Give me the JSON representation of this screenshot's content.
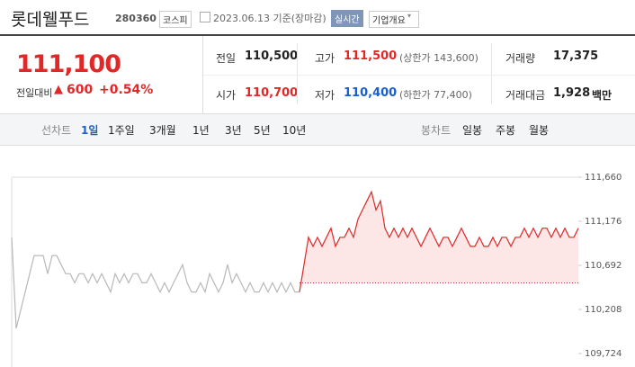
{
  "header": {
    "name": "롯데웰푸드",
    "code": "280360",
    "market": "코스피",
    "date": "2023.06.13 기준(장마감)",
    "realtime": "실시간",
    "company_info": "기업개요"
  },
  "quote": {
    "price": "111,100",
    "change_label": "전일대비",
    "change": "600",
    "change_rate": "+0.54%",
    "rows": [
      [
        {
          "label": "전일",
          "value": "110,500"
        },
        {
          "label": "고가",
          "value": "111,500",
          "note": "(상한가 143,600)"
        },
        {
          "label": "거래량",
          "value": "17,375"
        }
      ],
      [
        {
          "label": "시가",
          "value": "110,700"
        },
        {
          "label": "저가",
          "value": "110,400",
          "note": "(하한가 77,400)"
        },
        {
          "label": "거래대금",
          "value": "1,928",
          "unit": "백만"
        }
      ]
    ]
  },
  "tabs": {
    "line_label": "선차트",
    "line_periods": [
      "1일",
      "1주일",
      "3개월",
      "1년",
      "3년",
      "5년",
      "10년"
    ],
    "candle_label": "봉차트",
    "candle_periods": [
      "일봉",
      "주봉",
      "월봉"
    ]
  },
  "chart_data": {
    "type": "line",
    "ylim": [
      109724,
      111660
    ],
    "yticks": [
      {
        "value": 111660,
        "label": "111,660"
      },
      {
        "value": 111176,
        "label": "111,176"
      },
      {
        "value": 110692,
        "label": "110,692"
      },
      {
        "value": 110208,
        "label": "110,208"
      },
      {
        "value": 109724,
        "label": "109,724"
      }
    ],
    "baseline": 110500,
    "fill_color": "#fde6e6",
    "series": [
      {
        "color": "#b8b8b8",
        "values": [
          111000,
          110000,
          110200,
          110400,
          110600,
          110800,
          110800,
          110800,
          110600,
          110800,
          110800,
          110700,
          110600,
          110600,
          110500,
          110600,
          110600,
          110500,
          110600,
          110500,
          110600,
          110500,
          110400,
          110600,
          110500,
          110600,
          110500,
          110600,
          110600,
          110500,
          110500,
          110600,
          110500,
          110400,
          110500,
          110400,
          110500,
          110600,
          110700,
          110500,
          110400,
          110400,
          110500,
          110400,
          110600,
          110500,
          110400,
          110500,
          110700,
          110500,
          110600,
          110500,
          110400,
          110500,
          110400,
          110400,
          110500,
          110400,
          110500,
          110400,
          110500,
          110400,
          110500,
          110400,
          110400,
          null,
          null,
          null,
          null,
          null,
          null,
          null,
          null,
          null,
          null,
          null,
          null,
          null,
          null,
          null,
          null,
          null,
          null,
          null,
          null,
          null,
          null,
          null,
          null,
          null,
          null,
          null,
          null,
          null,
          null,
          null,
          null,
          null,
          null,
          null,
          null,
          null,
          null,
          null,
          null,
          null,
          null,
          null,
          null,
          null,
          null,
          null,
          null,
          null,
          null,
          null,
          null,
          null,
          null,
          null,
          null,
          null,
          null,
          null,
          null,
          null,
          null
        ]
      },
      {
        "color": "#e02828",
        "values": [
          null,
          null,
          null,
          null,
          null,
          null,
          null,
          null,
          null,
          null,
          null,
          null,
          null,
          null,
          null,
          null,
          null,
          null,
          null,
          null,
          null,
          null,
          null,
          null,
          null,
          null,
          null,
          null,
          null,
          null,
          null,
          null,
          null,
          null,
          null,
          null,
          null,
          null,
          null,
          null,
          null,
          null,
          null,
          null,
          null,
          null,
          null,
          null,
          null,
          null,
          null,
          null,
          null,
          null,
          null,
          null,
          null,
          null,
          null,
          null,
          null,
          null,
          null,
          null,
          110400,
          110700,
          111000,
          110900,
          111000,
          110900,
          111000,
          111100,
          110900,
          111000,
          111000,
          111100,
          111000,
          111200,
          111300,
          111400,
          111500,
          111300,
          111400,
          111100,
          111000,
          111100,
          111000,
          111100,
          111000,
          111100,
          111000,
          110900,
          111000,
          111100,
          111000,
          110900,
          111000,
          111000,
          110900,
          111000,
          111100,
          111000,
          110900,
          110900,
          111000,
          110900,
          110900,
          111000,
          110900,
          111000,
          111000,
          110900,
          111000,
          111000,
          111100,
          111000,
          111100,
          111000,
          111100,
          111100,
          111000,
          111100,
          111000,
          111100,
          111000,
          111000,
          111100
        ]
      }
    ]
  }
}
